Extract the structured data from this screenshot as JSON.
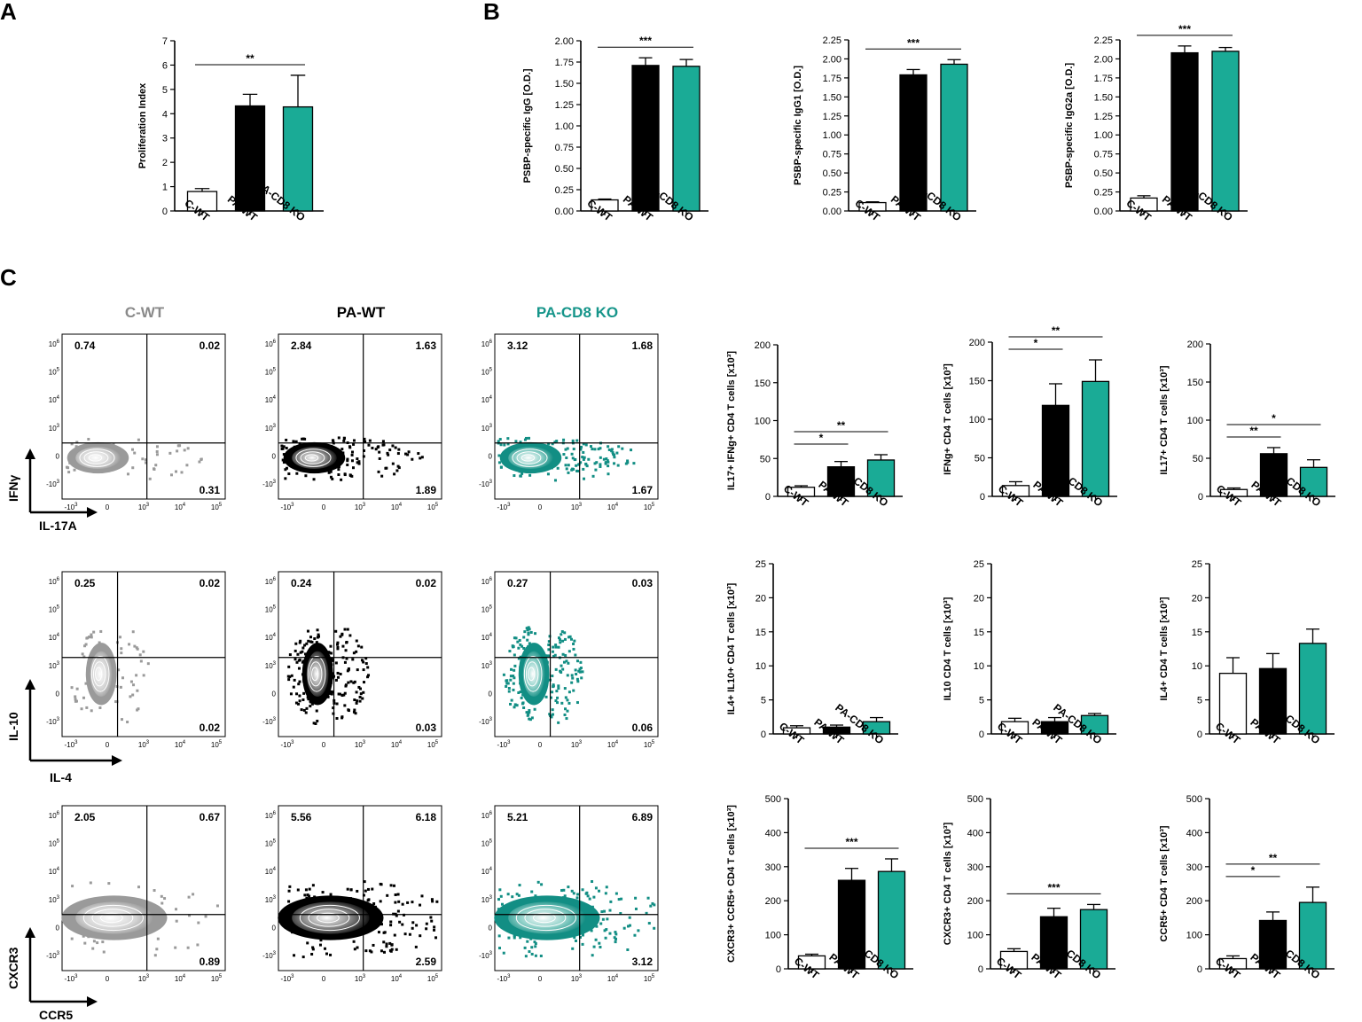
{
  "panel_labels": [
    "A",
    "B",
    "C"
  ],
  "colors": {
    "c_wt": "#ffffff",
    "pa_wt": "#000000",
    "pa_cd8ko": "#1aab96",
    "c_wt_flow": "#9a9a9a",
    "pa_cd8ko_title": "#16958a"
  },
  "conditions": [
    "C-WT",
    "PA-WT",
    "PA-CD8 KO"
  ],
  "chart_data": [
    {
      "id": "A",
      "type": "bar",
      "categories": [
        "C-WT",
        "PA-WT",
        "PA-CD8 KO"
      ],
      "values": [
        0.8,
        4.32,
        4.28
      ],
      "errors": [
        0.12,
        0.48,
        1.3
      ],
      "ylabel": "Proliferation Index",
      "ylim": [
        0,
        7
      ],
      "yticks": [
        "0",
        "1",
        "2",
        "3",
        "4",
        "5",
        "6",
        "7"
      ],
      "significance": [
        {
          "from": 0,
          "to": 2,
          "label": "**"
        }
      ]
    },
    {
      "id": "B1",
      "type": "bar",
      "categories": [
        "C-WT",
        "PA-WT",
        "PA-CD8 KO"
      ],
      "values": [
        0.13,
        1.71,
        1.7
      ],
      "errors": [
        0.01,
        0.09,
        0.08
      ],
      "ylabel": "PSBP-specific IgG [O.D.]",
      "ylim": [
        0,
        2.0
      ],
      "yticks": [
        "0.00",
        "0.25",
        "0.50",
        "0.75",
        "1.00",
        "1.25",
        "1.50",
        "1.75",
        "2.00"
      ],
      "significance": [
        {
          "from": 0,
          "to": 2,
          "label": "***"
        }
      ]
    },
    {
      "id": "B2",
      "type": "bar",
      "categories": [
        "C-WT",
        "PA-WT",
        "PA-CD8 KO"
      ],
      "values": [
        0.11,
        1.79,
        1.93
      ],
      "errors": [
        0.01,
        0.07,
        0.06
      ],
      "ylabel": "PSBP-specific IgG1 [O.D.]",
      "ylim": [
        0,
        2.25
      ],
      "yticks": [
        "0.00",
        "0.25",
        "0.50",
        "0.75",
        "1.00",
        "1.25",
        "1.50",
        "1.75",
        "2.00",
        "2.25"
      ],
      "significance": [
        {
          "from": 0,
          "to": 2,
          "label": "***"
        }
      ]
    },
    {
      "id": "B3",
      "type": "bar",
      "categories": [
        "C-WT",
        "PA-WT",
        "PA-CD8 KO"
      ],
      "values": [
        0.17,
        2.08,
        2.1
      ],
      "errors": [
        0.03,
        0.09,
        0.05
      ],
      "ylabel": "PSBP-specific IgG2a [O.D.]",
      "ylim": [
        0,
        2.25
      ],
      "yticks": [
        "0.00",
        "0.25",
        "0.50",
        "0.75",
        "1.00",
        "1.25",
        "1.50",
        "1.75",
        "2.00",
        "2.25"
      ],
      "significance": [
        {
          "from": 0,
          "to": 2,
          "label": "***"
        }
      ]
    },
    {
      "id": "C1",
      "type": "bar",
      "categories": [
        "C-WT",
        "PA-WT",
        "PA-CD8 KO"
      ],
      "values": [
        12,
        39,
        48
      ],
      "errors": [
        2,
        7,
        7
      ],
      "ylabel": "IL17+ IFNg+ CD4 T cells [x10³]",
      "ylim": [
        0,
        200
      ],
      "yticks": [
        "0",
        "50",
        "100",
        "150",
        "200"
      ],
      "significance": [
        {
          "from": 0,
          "to": 1,
          "label": "*"
        },
        {
          "from": 0,
          "to": 2,
          "label": "**"
        }
      ]
    },
    {
      "id": "C2",
      "type": "bar",
      "categories": [
        "C-WT",
        "PA-WT",
        "PA-CD8 KO"
      ],
      "values": [
        14,
        118,
        149
      ],
      "errors": [
        5,
        28,
        28
      ],
      "ylabel": "IFNg+ CD4 T cells [x10³]",
      "ylim": [
        0,
        200
      ],
      "yticks": [
        "0",
        "50",
        "100",
        "150",
        "200"
      ],
      "significance": [
        {
          "from": 0,
          "to": 1,
          "label": "*"
        },
        {
          "from": 0,
          "to": 2,
          "label": "**"
        }
      ]
    },
    {
      "id": "C3",
      "type": "bar",
      "categories": [
        "C-WT",
        "PA-WT",
        "PA-CD8 KO"
      ],
      "values": [
        9,
        56,
        38
      ],
      "errors": [
        2,
        8,
        10
      ],
      "ylabel": "IL17+ CD4 T cells [x10³]",
      "ylim": [
        0,
        200
      ],
      "yticks": [
        "0",
        "50",
        "100",
        "150",
        "200"
      ],
      "significance": [
        {
          "from": 0,
          "to": 1,
          "label": "**"
        },
        {
          "from": 0,
          "to": 2,
          "label": "*"
        }
      ]
    },
    {
      "id": "C4",
      "type": "bar",
      "categories": [
        "C-WT",
        "PA-WT",
        "PA-CD8 KO"
      ],
      "values": [
        0.9,
        1.0,
        1.8
      ],
      "errors": [
        0.3,
        0.3,
        0.6
      ],
      "ylabel": "IL4+ IL10+ CD4 T cells [x10³]",
      "ylim": [
        0,
        25
      ],
      "yticks": [
        "0",
        "5",
        "10",
        "15",
        "20",
        "25"
      ],
      "significance": []
    },
    {
      "id": "C5",
      "type": "bar",
      "categories": [
        "C-WT",
        "PA-WT",
        "PA-CD8 KO"
      ],
      "values": [
        1.8,
        1.8,
        2.7
      ],
      "errors": [
        0.5,
        0.6,
        0.3
      ],
      "ylabel": "IL10 CD4 T cells [x10³]",
      "ylim": [
        0,
        25
      ],
      "yticks": [
        "0",
        "5",
        "10",
        "15",
        "20",
        "25"
      ],
      "significance": []
    },
    {
      "id": "C6",
      "type": "bar",
      "categories": [
        "C-WT",
        "PA-WT",
        "PA-CD8 KO"
      ],
      "values": [
        8.9,
        9.6,
        13.3
      ],
      "errors": [
        2.3,
        2.2,
        2.1
      ],
      "ylabel": "IL4+ CD4 T cells [x10³]",
      "ylim": [
        0,
        25
      ],
      "yticks": [
        "0",
        "5",
        "10",
        "15",
        "20",
        "25"
      ],
      "significance": []
    },
    {
      "id": "C7",
      "type": "bar",
      "categories": [
        "C-WT",
        "PA-WT",
        "PA-CD8 KO"
      ],
      "values": [
        38,
        260,
        286
      ],
      "errors": [
        5,
        35,
        37
      ],
      "ylabel": "CXCR3+ CCR5+ CD4 T cells [x10³]",
      "ylim": [
        0,
        500
      ],
      "yticks": [
        "0",
        "100",
        "200",
        "300",
        "400",
        "500"
      ],
      "significance": [
        {
          "from": 0,
          "to": 2,
          "label": "***"
        }
      ]
    },
    {
      "id": "C8",
      "type": "bar",
      "categories": [
        "C-WT",
        "PA-WT",
        "PA-CD8 KO"
      ],
      "values": [
        51,
        153,
        174
      ],
      "errors": [
        8,
        25,
        15
      ],
      "ylabel": "CXCR3+ CD4 T cells [x10³]",
      "ylim": [
        0,
        500
      ],
      "yticks": [
        "0",
        "100",
        "200",
        "300",
        "400",
        "500"
      ],
      "significance": [
        {
          "from": 0,
          "to": 2,
          "label": "***"
        }
      ]
    },
    {
      "id": "C9",
      "type": "bar",
      "categories": [
        "C-WT",
        "PA-WT",
        "PA-CD8 KO"
      ],
      "values": [
        30,
        142,
        195
      ],
      "errors": [
        8,
        25,
        45
      ],
      "ylabel": "CCR5+ CD4 T cells [x10³]",
      "ylim": [
        0,
        500
      ],
      "yticks": [
        "0",
        "100",
        "200",
        "300",
        "400",
        "500"
      ],
      "significance": [
        {
          "from": 0,
          "to": 1,
          "label": "*"
        },
        {
          "from": 0,
          "to": 2,
          "label": "**"
        }
      ]
    }
  ],
  "flow_rows": [
    {
      "y_marker": "IFNγ",
      "x_marker": "IL-17A",
      "quadrants": [
        {
          "ul": "0.74",
          "ur": "0.02",
          "lr": "0.31"
        },
        {
          "ul": "2.84",
          "ur": "1.63",
          "lr": "1.89"
        },
        {
          "ul": "3.12",
          "ur": "1.68",
          "lr": "1.67"
        }
      ]
    },
    {
      "y_marker": "IL-10",
      "x_marker": "IL-4",
      "quadrants": [
        {
          "ul": "0.25",
          "ur": "0.02",
          "lr": "0.02"
        },
        {
          "ul": "0.24",
          "ur": "0.02",
          "lr": "0.03"
        },
        {
          "ul": "0.27",
          "ur": "0.03",
          "lr": "0.06"
        }
      ]
    },
    {
      "y_marker": "CXCR3",
      "x_marker": "CCR5",
      "quadrants": [
        {
          "ul": "2.05",
          "ur": "0.67",
          "lr": "0.89"
        },
        {
          "ul": "5.56",
          "ur": "6.18",
          "lr": "2.59"
        },
        {
          "ul": "5.21",
          "ur": "6.89",
          "lr": "3.12"
        }
      ]
    }
  ],
  "flow_axis": {
    "y_ticks": [
      {
        "b": "10",
        "e": "6"
      },
      {
        "b": "10",
        "e": "5"
      },
      {
        "b": "10",
        "e": "4"
      },
      {
        "b": "10",
        "e": "3"
      },
      {
        "b": "0",
        "e": ""
      },
      {
        "b": "-10",
        "e": "3"
      }
    ],
    "x_ticks": [
      {
        "b": "-10",
        "e": "3"
      },
      {
        "b": "0",
        "e": ""
      },
      {
        "b": "10",
        "e": "3"
      },
      {
        "b": "10",
        "e": "4"
      },
      {
        "b": "10",
        "e": "5"
      }
    ]
  }
}
